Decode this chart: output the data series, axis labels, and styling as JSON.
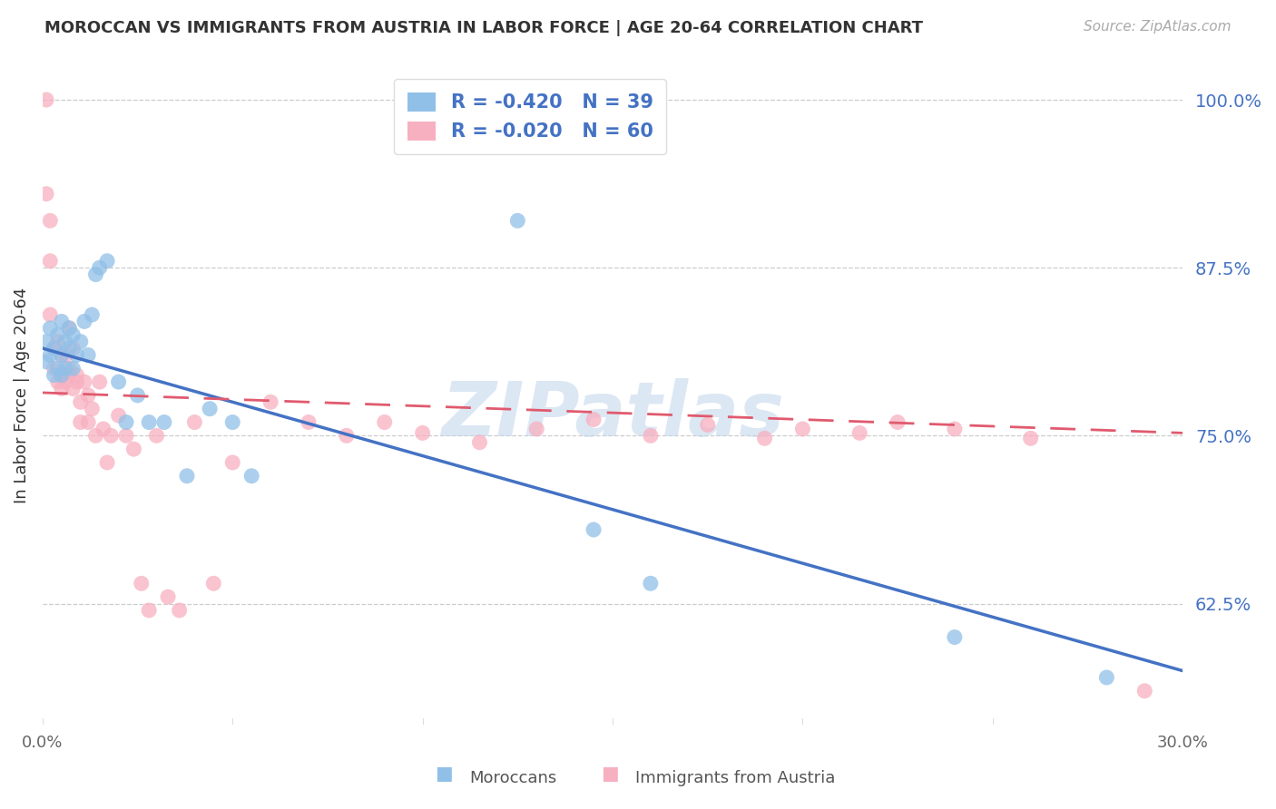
{
  "title": "MOROCCAN VS IMMIGRANTS FROM AUSTRIA IN LABOR FORCE | AGE 20-64 CORRELATION CHART",
  "source": "Source: ZipAtlas.com",
  "ylabel": "In Labor Force | Age 20-64",
  "x_min": 0.0,
  "x_max": 0.3,
  "y_min": 0.535,
  "y_max": 1.025,
  "y_ticks": [
    0.625,
    0.75,
    0.875,
    1.0
  ],
  "y_tick_labels": [
    "62.5%",
    "75.0%",
    "87.5%",
    "100.0%"
  ],
  "x_tick_show_only_ends": true,
  "moroccan_R": -0.42,
  "moroccan_N": 39,
  "austria_R": -0.02,
  "austria_N": 60,
  "moroccan_color": "#90c0e8",
  "austria_color": "#f7b0c0",
  "moroccan_line_color": "#4472c4",
  "austria_line_color": "#e05a6e",
  "watermark_text": "ZIPatlas",
  "watermark_color": "#c5d8ed",
  "legend_moroccan": "Moroccans",
  "legend_austria": "Immigrants from Austria",
  "moroccan_x": [
    0.001,
    0.001,
    0.002,
    0.002,
    0.003,
    0.003,
    0.004,
    0.004,
    0.005,
    0.005,
    0.005,
    0.006,
    0.006,
    0.007,
    0.007,
    0.008,
    0.008,
    0.009,
    0.01,
    0.011,
    0.012,
    0.013,
    0.014,
    0.015,
    0.017,
    0.02,
    0.022,
    0.025,
    0.028,
    0.032,
    0.038,
    0.044,
    0.05,
    0.055,
    0.125,
    0.145,
    0.16,
    0.24,
    0.28
  ],
  "moroccan_y": [
    0.805,
    0.82,
    0.81,
    0.83,
    0.795,
    0.815,
    0.8,
    0.825,
    0.795,
    0.81,
    0.835,
    0.8,
    0.82,
    0.815,
    0.83,
    0.8,
    0.825,
    0.81,
    0.82,
    0.835,
    0.81,
    0.84,
    0.87,
    0.875,
    0.88,
    0.79,
    0.76,
    0.78,
    0.76,
    0.76,
    0.72,
    0.77,
    0.76,
    0.72,
    0.91,
    0.68,
    0.64,
    0.6,
    0.57
  ],
  "austria_x": [
    0.001,
    0.001,
    0.002,
    0.002,
    0.002,
    0.003,
    0.003,
    0.004,
    0.004,
    0.005,
    0.005,
    0.005,
    0.006,
    0.006,
    0.007,
    0.007,
    0.007,
    0.008,
    0.008,
    0.009,
    0.009,
    0.01,
    0.01,
    0.011,
    0.012,
    0.012,
    0.013,
    0.014,
    0.015,
    0.016,
    0.017,
    0.018,
    0.02,
    0.022,
    0.024,
    0.026,
    0.028,
    0.03,
    0.033,
    0.036,
    0.04,
    0.045,
    0.05,
    0.06,
    0.07,
    0.08,
    0.09,
    0.1,
    0.115,
    0.13,
    0.145,
    0.16,
    0.175,
    0.19,
    0.2,
    0.215,
    0.225,
    0.24,
    0.26,
    0.29
  ],
  "austria_y": [
    1.0,
    0.93,
    0.91,
    0.88,
    0.84,
    0.815,
    0.8,
    0.79,
    0.82,
    0.795,
    0.785,
    0.81,
    0.79,
    0.81,
    0.795,
    0.8,
    0.83,
    0.785,
    0.815,
    0.795,
    0.79,
    0.775,
    0.76,
    0.79,
    0.78,
    0.76,
    0.77,
    0.75,
    0.79,
    0.755,
    0.73,
    0.75,
    0.765,
    0.75,
    0.74,
    0.64,
    0.62,
    0.75,
    0.63,
    0.62,
    0.76,
    0.64,
    0.73,
    0.775,
    0.76,
    0.75,
    0.76,
    0.752,
    0.745,
    0.755,
    0.762,
    0.75,
    0.758,
    0.748,
    0.755,
    0.752,
    0.76,
    0.755,
    0.748,
    0.56
  ],
  "background_color": "#ffffff",
  "grid_color": "#cccccc",
  "moroccan_line_x0": 0.0,
  "moroccan_line_y0": 0.815,
  "moroccan_line_x1": 0.3,
  "moroccan_line_y1": 0.575,
  "austria_line_x0": 0.0,
  "austria_line_y0": 0.782,
  "austria_line_x1": 0.3,
  "austria_line_y1": 0.752
}
